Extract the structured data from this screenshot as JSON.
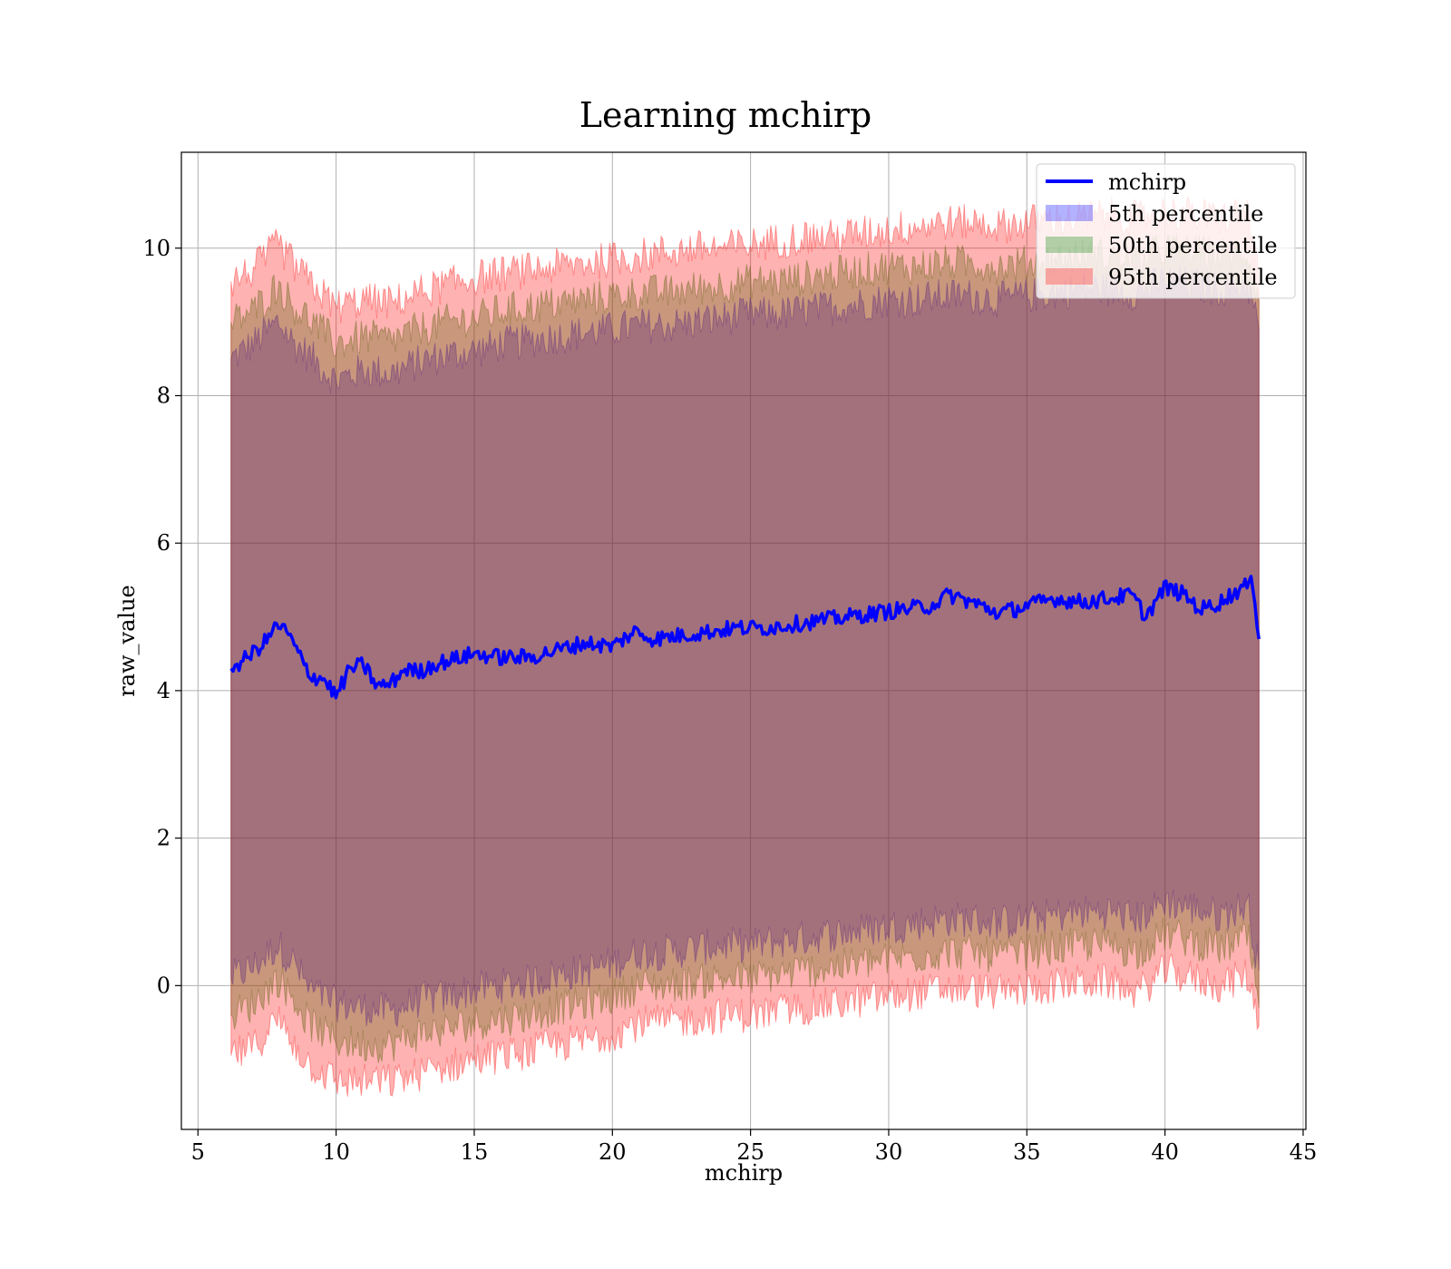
{
  "chart_data": {
    "type": "area",
    "title": "Learning mchirp",
    "xlabel": "mchirp",
    "ylabel": "raw_value",
    "xlim": [
      4.4,
      45.1
    ],
    "ylim": [
      -1.95,
      11.3
    ],
    "x_ticks": [
      5,
      10,
      15,
      20,
      25,
      30,
      35,
      40,
      45
    ],
    "y_ticks": [
      0,
      2,
      4,
      6,
      8,
      10
    ],
    "grid": true,
    "legend_position": "top-right",
    "x_range": [
      6.2,
      43.4
    ],
    "line": {
      "name": "mchirp",
      "color": "#0000ff",
      "points": [
        [
          6.2,
          4.3
        ],
        [
          6.8,
          4.45
        ],
        [
          7.4,
          4.65
        ],
        [
          7.9,
          4.9
        ],
        [
          8.3,
          4.75
        ],
        [
          8.7,
          4.45
        ],
        [
          9.1,
          4.2
        ],
        [
          9.6,
          4.15
        ],
        [
          10.0,
          3.92
        ],
        [
          10.5,
          4.3
        ],
        [
          11.0,
          4.35
        ],
        [
          11.5,
          4.05
        ],
        [
          12.0,
          4.1
        ],
        [
          12.5,
          4.3
        ],
        [
          13.0,
          4.25
        ],
        [
          13.5,
          4.35
        ],
        [
          14.0,
          4.4
        ],
        [
          15.0,
          4.5
        ],
        [
          16.0,
          4.45
        ],
        [
          17.0,
          4.45
        ],
        [
          18.0,
          4.55
        ],
        [
          19.0,
          4.65
        ],
        [
          20.0,
          4.6
        ],
        [
          20.8,
          4.8
        ],
        [
          21.5,
          4.7
        ],
        [
          22.5,
          4.75
        ],
        [
          23.5,
          4.8
        ],
        [
          24.5,
          4.85
        ],
        [
          25.5,
          4.85
        ],
        [
          26.5,
          4.9
        ],
        [
          27.5,
          4.95
        ],
        [
          28.5,
          5.0
        ],
        [
          29.5,
          5.05
        ],
        [
          30.5,
          5.1
        ],
        [
          31.5,
          5.15
        ],
        [
          32.2,
          5.3
        ],
        [
          33.0,
          5.2
        ],
        [
          34.0,
          5.05
        ],
        [
          35.0,
          5.15
        ],
        [
          36.0,
          5.25
        ],
        [
          37.0,
          5.2
        ],
        [
          38.0,
          5.25
        ],
        [
          38.8,
          5.3
        ],
        [
          39.3,
          5.0
        ],
        [
          40.0,
          5.4
        ],
        [
          40.7,
          5.3
        ],
        [
          41.3,
          5.1
        ],
        [
          42.0,
          5.2
        ],
        [
          42.8,
          5.4
        ],
        [
          43.2,
          5.45
        ],
        [
          43.4,
          4.7
        ]
      ]
    },
    "bands": [
      {
        "name": "5th percentile",
        "color": "#0000ff",
        "lower": [
          [
            6.2,
            0.1
          ],
          [
            7.0,
            0.25
          ],
          [
            7.9,
            0.55
          ],
          [
            8.5,
            0.3
          ],
          [
            9.0,
            -0.05
          ],
          [
            10.0,
            -0.25
          ],
          [
            11.0,
            -0.3
          ],
          [
            12.0,
            -0.35
          ],
          [
            13.0,
            -0.2
          ],
          [
            14.0,
            -0.15
          ],
          [
            15.0,
            -0.05
          ],
          [
            16.0,
            0.0
          ],
          [
            17.0,
            0.05
          ],
          [
            18.0,
            0.15
          ],
          [
            19.0,
            0.2
          ],
          [
            20.0,
            0.3
          ],
          [
            21.0,
            0.45
          ],
          [
            22.0,
            0.45
          ],
          [
            23.0,
            0.5
          ],
          [
            24.0,
            0.55
          ],
          [
            25.0,
            0.55
          ],
          [
            26.0,
            0.6
          ],
          [
            27.0,
            0.65
          ],
          [
            28.0,
            0.7
          ],
          [
            29.0,
            0.75
          ],
          [
            30.0,
            0.8
          ],
          [
            31.0,
            0.85
          ],
          [
            32.0,
            0.9
          ],
          [
            33.0,
            0.9
          ],
          [
            34.0,
            0.85
          ],
          [
            35.0,
            0.9
          ],
          [
            36.0,
            0.95
          ],
          [
            37.0,
            1.0
          ],
          [
            38.0,
            1.0
          ],
          [
            39.0,
            0.9
          ],
          [
            40.0,
            1.15
          ],
          [
            41.0,
            1.05
          ],
          [
            42.0,
            0.95
          ],
          [
            43.0,
            1.1
          ],
          [
            43.4,
            0.2
          ]
        ],
        "upper": [
          [
            6.2,
            8.5
          ],
          [
            7.0,
            8.7
          ],
          [
            7.9,
            9.0
          ],
          [
            8.5,
            8.7
          ],
          [
            9.0,
            8.55
          ],
          [
            10.0,
            8.2
          ],
          [
            11.0,
            8.35
          ],
          [
            12.0,
            8.3
          ],
          [
            13.0,
            8.45
          ],
          [
            14.0,
            8.55
          ],
          [
            15.0,
            8.6
          ],
          [
            16.0,
            8.7
          ],
          [
            17.0,
            8.75
          ],
          [
            18.0,
            8.8
          ],
          [
            19.0,
            8.85
          ],
          [
            20.0,
            8.9
          ],
          [
            21.0,
            8.95
          ],
          [
            22.0,
            8.95
          ],
          [
            23.0,
            9.0
          ],
          [
            24.0,
            9.05
          ],
          [
            25.0,
            9.1
          ],
          [
            26.0,
            9.1
          ],
          [
            27.0,
            9.15
          ],
          [
            28.0,
            9.2
          ],
          [
            29.0,
            9.25
          ],
          [
            30.0,
            9.3
          ],
          [
            31.0,
            9.3
          ],
          [
            32.0,
            9.35
          ],
          [
            33.0,
            9.35
          ],
          [
            34.0,
            9.3
          ],
          [
            35.0,
            9.35
          ],
          [
            36.0,
            9.4
          ],
          [
            37.0,
            9.45
          ],
          [
            38.0,
            9.45
          ],
          [
            39.0,
            9.4
          ],
          [
            40.0,
            9.55
          ],
          [
            41.0,
            9.5
          ],
          [
            42.0,
            9.45
          ],
          [
            43.0,
            9.5
          ],
          [
            43.4,
            8.9
          ]
        ]
      },
      {
        "name": "50th percentile",
        "color": "#008000",
        "lower": [
          [
            6.2,
            -0.4
          ],
          [
            7.0,
            -0.25
          ],
          [
            7.9,
            0.1
          ],
          [
            8.5,
            -0.2
          ],
          [
            9.0,
            -0.5
          ],
          [
            10.0,
            -0.75
          ],
          [
            11.0,
            -0.8
          ],
          [
            12.0,
            -0.8
          ],
          [
            13.0,
            -0.65
          ],
          [
            14.0,
            -0.6
          ],
          [
            15.0,
            -0.5
          ],
          [
            16.0,
            -0.45
          ],
          [
            17.0,
            -0.4
          ],
          [
            18.0,
            -0.3
          ],
          [
            19.0,
            -0.25
          ],
          [
            20.0,
            -0.15
          ],
          [
            21.0,
            0.0
          ],
          [
            22.0,
            0.0
          ],
          [
            23.0,
            0.05
          ],
          [
            24.0,
            0.1
          ],
          [
            25.0,
            0.1
          ],
          [
            26.0,
            0.15
          ],
          [
            27.0,
            0.2
          ],
          [
            28.0,
            0.25
          ],
          [
            29.0,
            0.3
          ],
          [
            30.0,
            0.35
          ],
          [
            31.0,
            0.4
          ],
          [
            32.0,
            0.45
          ],
          [
            33.0,
            0.45
          ],
          [
            34.0,
            0.4
          ],
          [
            35.0,
            0.45
          ],
          [
            36.0,
            0.5
          ],
          [
            37.0,
            0.55
          ],
          [
            38.0,
            0.55
          ],
          [
            39.0,
            0.45
          ],
          [
            40.0,
            0.7
          ],
          [
            41.0,
            0.6
          ],
          [
            42.0,
            0.5
          ],
          [
            43.0,
            0.65
          ],
          [
            43.4,
            -0.3
          ]
        ],
        "upper": [
          [
            6.2,
            9.0
          ],
          [
            7.0,
            9.15
          ],
          [
            7.9,
            9.5
          ],
          [
            8.5,
            9.2
          ],
          [
            9.0,
            9.05
          ],
          [
            10.0,
            8.7
          ],
          [
            11.0,
            8.8
          ],
          [
            12.0,
            8.75
          ],
          [
            13.0,
            8.9
          ],
          [
            14.0,
            9.0
          ],
          [
            15.0,
            9.05
          ],
          [
            16.0,
            9.15
          ],
          [
            17.0,
            9.2
          ],
          [
            18.0,
            9.25
          ],
          [
            19.0,
            9.3
          ],
          [
            20.0,
            9.35
          ],
          [
            21.0,
            9.4
          ],
          [
            22.0,
            9.4
          ],
          [
            23.0,
            9.45
          ],
          [
            24.0,
            9.5
          ],
          [
            25.0,
            9.55
          ],
          [
            26.0,
            9.55
          ],
          [
            27.0,
            9.6
          ],
          [
            28.0,
            9.65
          ],
          [
            29.0,
            9.7
          ],
          [
            30.0,
            9.75
          ],
          [
            31.0,
            9.75
          ],
          [
            32.0,
            9.8
          ],
          [
            33.0,
            9.8
          ],
          [
            34.0,
            9.75
          ],
          [
            35.0,
            9.8
          ],
          [
            36.0,
            9.85
          ],
          [
            37.0,
            9.9
          ],
          [
            38.0,
            9.9
          ],
          [
            39.0,
            9.85
          ],
          [
            40.0,
            10.0
          ],
          [
            41.0,
            9.95
          ],
          [
            42.0,
            9.9
          ],
          [
            43.0,
            9.95
          ],
          [
            43.4,
            9.3
          ]
        ]
      },
      {
        "name": "95th percentile",
        "color": "#ff0000",
        "lower": [
          [
            6.2,
            -0.95
          ],
          [
            7.0,
            -0.85
          ],
          [
            7.9,
            -0.45
          ],
          [
            8.5,
            -0.8
          ],
          [
            9.0,
            -1.05
          ],
          [
            10.0,
            -1.3
          ],
          [
            11.0,
            -1.3
          ],
          [
            12.0,
            -1.3
          ],
          [
            13.0,
            -1.2
          ],
          [
            14.0,
            -1.1
          ],
          [
            15.0,
            -1.0
          ],
          [
            16.0,
            -0.95
          ],
          [
            17.0,
            -0.9
          ],
          [
            18.0,
            -0.8
          ],
          [
            19.0,
            -0.75
          ],
          [
            20.0,
            -0.65
          ],
          [
            21.0,
            -0.5
          ],
          [
            22.0,
            -0.5
          ],
          [
            23.0,
            -0.45
          ],
          [
            24.0,
            -0.4
          ],
          [
            25.0,
            -0.4
          ],
          [
            26.0,
            -0.35
          ],
          [
            27.0,
            -0.3
          ],
          [
            28.0,
            -0.25
          ],
          [
            29.0,
            -0.2
          ],
          [
            30.0,
            -0.15
          ],
          [
            31.0,
            -0.1
          ],
          [
            32.0,
            -0.05
          ],
          [
            33.0,
            -0.05
          ],
          [
            34.0,
            -0.1
          ],
          [
            35.0,
            -0.05
          ],
          [
            36.0,
            0.0
          ],
          [
            37.0,
            0.05
          ],
          [
            38.0,
            0.05
          ],
          [
            39.0,
            -0.1
          ],
          [
            40.0,
            0.2
          ],
          [
            41.0,
            0.1
          ],
          [
            42.0,
            0.0
          ],
          [
            43.0,
            0.15
          ],
          [
            43.4,
            -0.55
          ]
        ],
        "upper": [
          [
            6.2,
            9.55
          ],
          [
            7.0,
            9.7
          ],
          [
            7.9,
            10.05
          ],
          [
            8.5,
            9.75
          ],
          [
            9.0,
            9.55
          ],
          [
            10.0,
            9.2
          ],
          [
            11.0,
            9.3
          ],
          [
            12.0,
            9.25
          ],
          [
            13.0,
            9.4
          ],
          [
            14.0,
            9.5
          ],
          [
            15.0,
            9.6
          ],
          [
            16.0,
            9.65
          ],
          [
            17.0,
            9.7
          ],
          [
            18.0,
            9.75
          ],
          [
            19.0,
            9.8
          ],
          [
            20.0,
            9.85
          ],
          [
            21.0,
            9.9
          ],
          [
            22.0,
            9.95
          ],
          [
            23.0,
            10.0
          ],
          [
            24.0,
            10.0
          ],
          [
            25.0,
            10.05
          ],
          [
            26.0,
            10.1
          ],
          [
            27.0,
            10.15
          ],
          [
            28.0,
            10.15
          ],
          [
            29.0,
            10.2
          ],
          [
            30.0,
            10.25
          ],
          [
            31.0,
            10.3
          ],
          [
            32.0,
            10.35
          ],
          [
            33.0,
            10.35
          ],
          [
            34.0,
            10.3
          ],
          [
            35.0,
            10.35
          ],
          [
            36.0,
            10.4
          ],
          [
            37.0,
            10.4
          ],
          [
            38.0,
            10.45
          ],
          [
            39.0,
            10.4
          ],
          [
            40.0,
            10.5
          ],
          [
            41.0,
            10.45
          ],
          [
            42.0,
            10.4
          ],
          [
            43.0,
            10.5
          ],
          [
            43.4,
            9.5
          ]
        ]
      }
    ]
  }
}
